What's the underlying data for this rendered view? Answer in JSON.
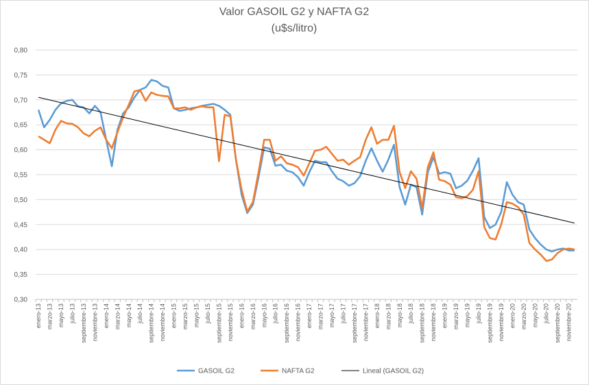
{
  "chart_data": {
    "type": "line",
    "title": "Valor GASOIL G2 y NAFTA G2",
    "subtitle": "(u$s/litro)",
    "categories": [
      "enero-13",
      null,
      "marzo-13",
      null,
      "mayo-13",
      null,
      "julio-13",
      null,
      "septiembre-13",
      null,
      "noviembre-13",
      null,
      "enero-14",
      null,
      "marzo-14",
      null,
      "mayo-14",
      null,
      "julio-14",
      null,
      "septiembre-14",
      null,
      "noviembre-14",
      null,
      "enero-15",
      null,
      "marzo-15",
      null,
      "mayo-15",
      null,
      "julio-15",
      null,
      "septiembre-15",
      null,
      "noviembre-15",
      null,
      "enero-16",
      null,
      "marzo-16",
      null,
      "mayo-16",
      null,
      "julio-16",
      null,
      "septiembre-16",
      null,
      "noviembre-16",
      null,
      "enero-17",
      null,
      "marzo-17",
      null,
      "mayo-17",
      null,
      "julio-17",
      null,
      "septiembre-17",
      null,
      "noviembre-17",
      null,
      "enero-18",
      null,
      "marzo-18",
      null,
      "mayo-18",
      null,
      "julio-18",
      null,
      "septiembre-18",
      null,
      "noviembre-18",
      null,
      "enero-19",
      null,
      "marzo-19",
      null,
      "mayo-19",
      null,
      "julio-19",
      null,
      "septiembre-19",
      null,
      "noviembre-19",
      null,
      "enero-20",
      null,
      "marzo-20",
      null,
      "mayo-20",
      null,
      "julio-20",
      null,
      "septiembre-20",
      null,
      "noviembre-20",
      null
    ],
    "series": [
      {
        "name": "GASOIL G2",
        "color": "#5b9bd5",
        "values": [
          0.68,
          0.645,
          0.66,
          0.68,
          0.693,
          0.698,
          0.7,
          0.687,
          0.685,
          0.673,
          0.688,
          0.675,
          0.62,
          0.567,
          0.64,
          0.673,
          0.685,
          0.705,
          0.72,
          0.725,
          0.74,
          0.737,
          0.728,
          0.725,
          0.683,
          0.678,
          0.68,
          0.683,
          0.685,
          0.688,
          0.69,
          0.692,
          0.688,
          0.68,
          0.67,
          0.58,
          0.51,
          0.473,
          0.49,
          0.545,
          0.605,
          0.602,
          0.568,
          0.57,
          0.558,
          0.555,
          0.545,
          0.528,
          0.555,
          0.578,
          0.575,
          0.575,
          0.557,
          0.542,
          0.537,
          0.528,
          0.533,
          0.547,
          0.578,
          0.603,
          0.578,
          0.556,
          0.58,
          0.61,
          0.525,
          0.49,
          0.53,
          0.525,
          0.47,
          0.555,
          0.585,
          0.552,
          0.555,
          0.552,
          0.523,
          0.528,
          0.538,
          0.558,
          0.583,
          0.465,
          0.443,
          0.45,
          0.475,
          0.535,
          0.51,
          0.495,
          0.49,
          0.44,
          0.423,
          0.41,
          0.4,
          0.396,
          0.4,
          0.402,
          0.398,
          0.398
        ]
      },
      {
        "name": "NAFTA G2",
        "color": "#ed7d31",
        "values": [
          0.627,
          0.62,
          0.613,
          0.64,
          0.658,
          0.653,
          0.652,
          0.645,
          0.633,
          0.627,
          0.638,
          0.645,
          0.62,
          0.603,
          0.635,
          0.665,
          0.69,
          0.717,
          0.72,
          0.698,
          0.715,
          0.71,
          0.708,
          0.707,
          0.683,
          0.683,
          0.685,
          0.68,
          0.685,
          0.687,
          0.685,
          0.685,
          0.577,
          0.67,
          0.667,
          0.58,
          0.52,
          0.476,
          0.495,
          0.555,
          0.62,
          0.62,
          0.578,
          0.587,
          0.573,
          0.57,
          0.565,
          0.548,
          0.573,
          0.598,
          0.6,
          0.606,
          0.592,
          0.578,
          0.58,
          0.57,
          0.578,
          0.585,
          0.62,
          0.645,
          0.612,
          0.62,
          0.62,
          0.648,
          0.555,
          0.523,
          0.557,
          0.542,
          0.483,
          0.565,
          0.595,
          0.54,
          0.537,
          0.53,
          0.505,
          0.503,
          0.507,
          0.52,
          0.557,
          0.445,
          0.423,
          0.42,
          0.45,
          0.495,
          0.492,
          0.485,
          0.47,
          0.413,
          0.4,
          0.39,
          0.377,
          0.38,
          0.393,
          0.4,
          0.402,
          0.4
        ]
      }
    ],
    "trendline": {
      "name": "Lineal (GASOIL G2)",
      "color": "#000000",
      "start": 0.705,
      "end": 0.453
    },
    "ylim": [
      0.3,
      0.8
    ],
    "yticks": [
      {
        "value": 0.3,
        "label": "0,30"
      },
      {
        "value": 0.35,
        "label": "0,35"
      },
      {
        "value": 0.4,
        "label": "0,40"
      },
      {
        "value": 0.45,
        "label": "0,45"
      },
      {
        "value": 0.5,
        "label": "0,50"
      },
      {
        "value": 0.55,
        "label": "0,55"
      },
      {
        "value": 0.6,
        "label": "0,60"
      },
      {
        "value": 0.65,
        "label": "0,65"
      },
      {
        "value": 0.7,
        "label": "0,70"
      },
      {
        "value": 0.75,
        "label": "0,75"
      },
      {
        "value": 0.8,
        "label": "0,80"
      }
    ],
    "grid": true,
    "legend": "bottom"
  }
}
